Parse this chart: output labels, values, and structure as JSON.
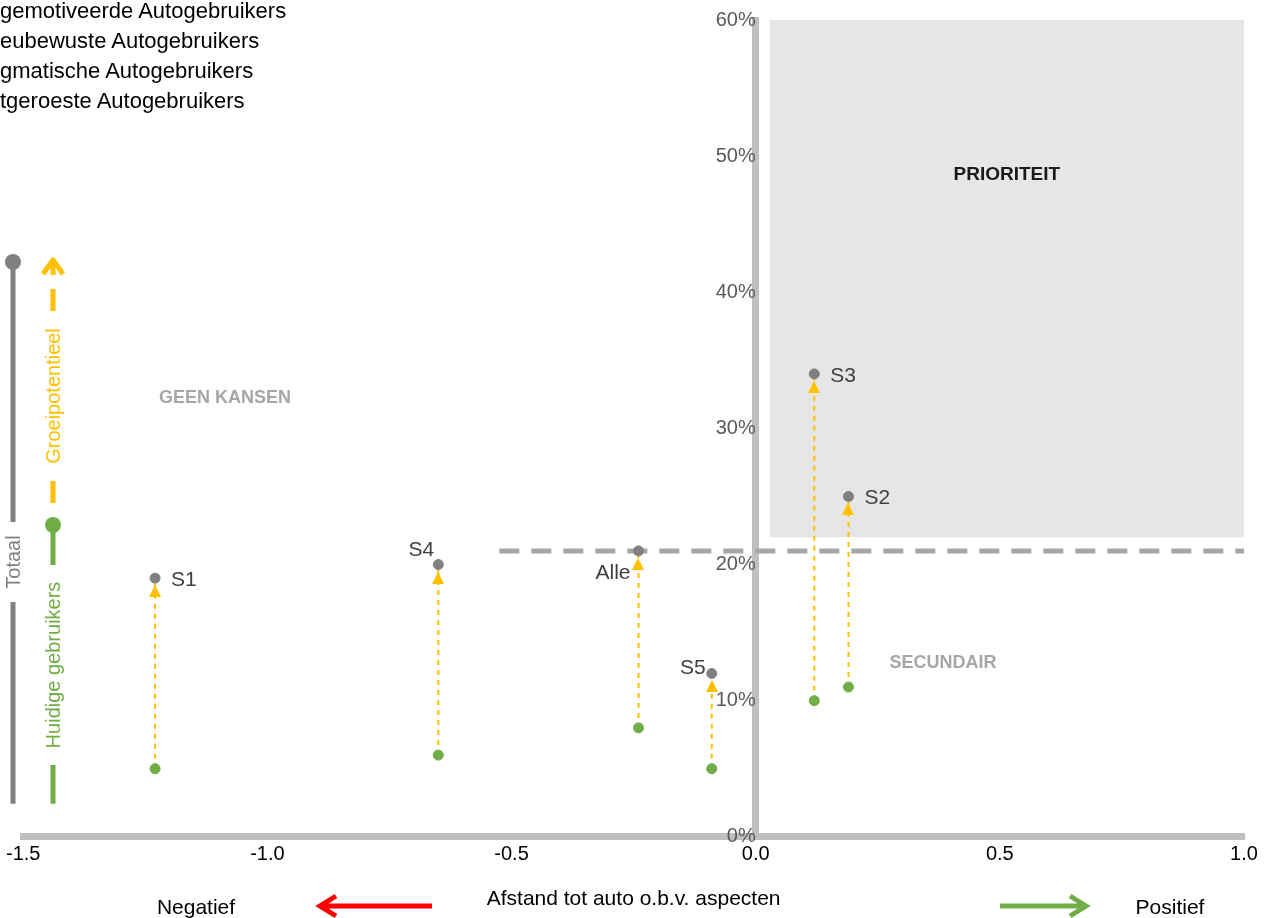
{
  "chart_data": {
    "type": "scatter",
    "xlabel": "Afstand tot auto o.b.v. aspecten",
    "x": [
      -1.23,
      -0.65,
      -0.24,
      -0.09,
      0.12,
      0.19
    ],
    "series": [
      {
        "name": "Totaal",
        "type": "scatter",
        "color": "#808080",
        "values": [
          19,
          20,
          21,
          12,
          34,
          25
        ]
      },
      {
        "name": "Huidige gebruikers",
        "type": "scatter",
        "color": "#70ad47",
        "values": [
          5,
          6,
          8,
          5,
          10,
          11
        ]
      },
      {
        "name": "Groeipotentieel",
        "type": "line",
        "line_style": "dashed",
        "color": "#ffc000",
        "x": [
          -1.23,
          -1.23
        ],
        "values": [
          5,
          19
        ]
      },
      {
        "type": "line",
        "line_style": "dashed",
        "color": "#ffc000",
        "x": [
          -0.65,
          -0.65
        ],
        "values": [
          6,
          20
        ]
      },
      {
        "type": "line",
        "line_style": "dashed",
        "color": "#ffc000",
        "x": [
          -0.24,
          -0.24
        ],
        "values": [
          8,
          21
        ]
      },
      {
        "type": "line",
        "line_style": "dashed",
        "color": "#ffc000",
        "x": [
          -0.09,
          -0.09
        ],
        "values": [
          5,
          12
        ]
      },
      {
        "type": "line",
        "line_style": "dashed",
        "color": "#ffc000",
        "x": [
          0.12,
          0.12
        ],
        "values": [
          10,
          34
        ]
      },
      {
        "type": "line",
        "line_style": "dashed",
        "color": "#ffc000",
        "x": [
          0.19,
          0.19
        ],
        "values": [
          11,
          25
        ]
      }
    ],
    "xlim": [
      -1.5,
      1.0
    ],
    "xticks": [
      {
        "value": -1.5,
        "label": "-1.5"
      },
      {
        "value": -1,
        "label": "-1.0"
      },
      {
        "value": -0.5,
        "label": "-0.5"
      },
      {
        "value": 0,
        "label": "0.0"
      },
      {
        "value": 0.5,
        "label": "0.5"
      },
      {
        "value": 1,
        "label": "1.0"
      }
    ],
    "ylim": [
      0,
      60
    ],
    "yticks": [
      {
        "value": 0,
        "label": "0%"
      },
      {
        "value": 10,
        "label": "10%"
      },
      {
        "value": 20,
        "label": "20%"
      },
      {
        "value": 30,
        "label": "30%"
      },
      {
        "value": 40,
        "label": "40%"
      },
      {
        "value": 50,
        "label": "50%"
      },
      {
        "value": 60,
        "label": "60%"
      }
    ],
    "ref_lines": [
      {
        "axis": "y",
        "value": 21,
        "color": "#a6a6a6",
        "line_style": "dashed"
      }
    ],
    "bands": [
      {
        "axis": "y",
        "from": 22,
        "to": 60,
        "label": "PRIORITEIT",
        "color": "#e6e6e6"
      }
    ],
    "annotations": [
      "gemotiveerde Autogebruikers",
      "eubewuste Autogebruikers",
      "gmatische Autogebruikers",
      "tgeroeste Autogebruikers",
      "GEEN KANSEN",
      "SECUNDAIR",
      "Negatief",
      "Positief",
      {
        "text": "S1",
        "x": -1.23,
        "y": 19
      },
      {
        "text": "S4",
        "x": -0.65,
        "y": 20
      },
      {
        "text": "Alle",
        "x": -0.24,
        "y": 21
      },
      {
        "text": "S5",
        "x": -0.09,
        "y": 12
      },
      {
        "text": "S3",
        "x": 0.12,
        "y": 34
      },
      {
        "text": "S2",
        "x": 0.19,
        "y": 25
      }
    ],
    "legend": "left",
    "grid": false
  }
}
